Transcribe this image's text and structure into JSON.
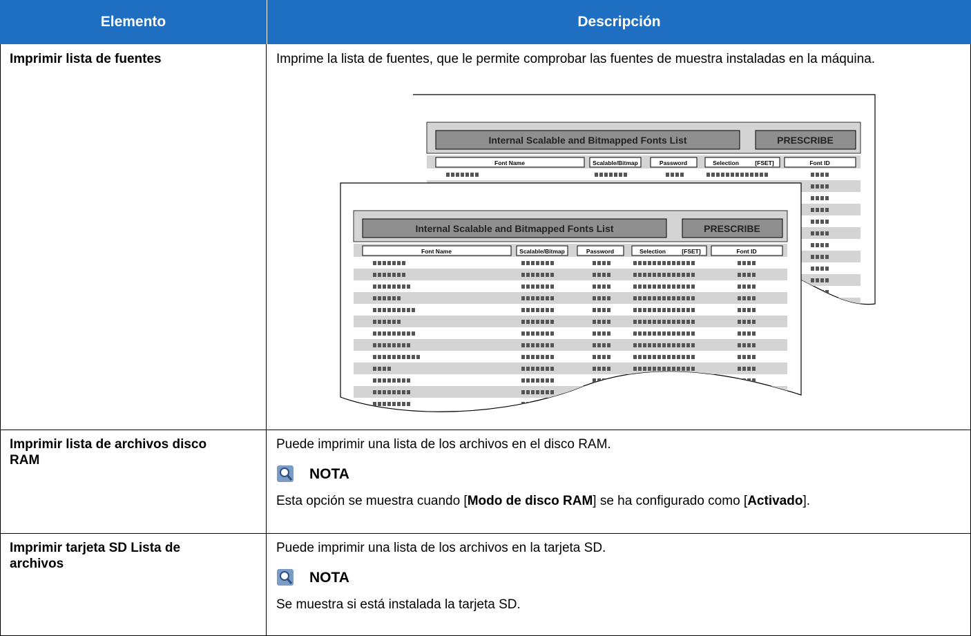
{
  "table": {
    "headers": [
      "Elemento",
      "Descripción"
    ],
    "rows": [
      {
        "item": "Imprimir lista de fuentes",
        "description": "Imprime la lista de fuentes, que le permite comprobar las fuentes de muestra instaladas en la máquina.",
        "illustration": {
          "title": "Internal Scalable and Bitmapped Fonts List",
          "badge": "PRESCRIBE",
          "columns": [
            "Font Name",
            "Scalable/Bitmap",
            "Password",
            "Selection",
            "[FSET]",
            "Font ID"
          ]
        }
      },
      {
        "item": "Imprimir lista de archivos disco RAM",
        "description": "Puede imprimir una lista de los archivos en el disco RAM.",
        "note": {
          "label": "NOTA",
          "text": [
            "Esta opción se muestra cuando [",
            "Modo de disco RAM",
            "] se ha configurado como [",
            "Activado",
            "]."
          ]
        }
      },
      {
        "item": "Imprimir tarjeta SD Lista de archivos",
        "description": "Puede imprimir una lista de los archivos en la tarjeta SD.",
        "note": {
          "label": "NOTA",
          "text": [
            "Se muestra si está instalada la tarjeta SD."
          ]
        }
      }
    ]
  }
}
